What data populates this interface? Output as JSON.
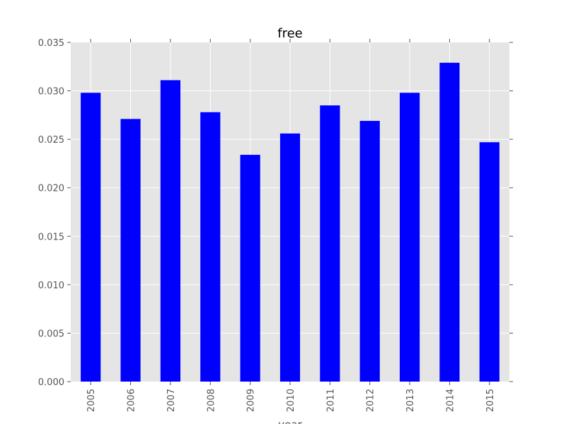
{
  "chart_data": {
    "type": "bar",
    "title": "free",
    "xlabel": "year",
    "ylabel": "",
    "categories": [
      "2005",
      "2006",
      "2007",
      "2008",
      "2009",
      "2010",
      "2011",
      "2012",
      "2013",
      "2014",
      "2015"
    ],
    "values": [
      0.0298,
      0.0271,
      0.0311,
      0.0278,
      0.0234,
      0.0256,
      0.0285,
      0.0269,
      0.0298,
      0.0329,
      0.0247
    ],
    "ylim": [
      0,
      0.035
    ],
    "yticks": [
      "0.000",
      "0.005",
      "0.010",
      "0.015",
      "0.020",
      "0.025",
      "0.030",
      "0.035"
    ],
    "grid": true,
    "legend": "none",
    "colors": {
      "bar": "#0000ff",
      "background": "#e5e5e5",
      "grid": "#ffffff",
      "tick": "#555555"
    }
  }
}
